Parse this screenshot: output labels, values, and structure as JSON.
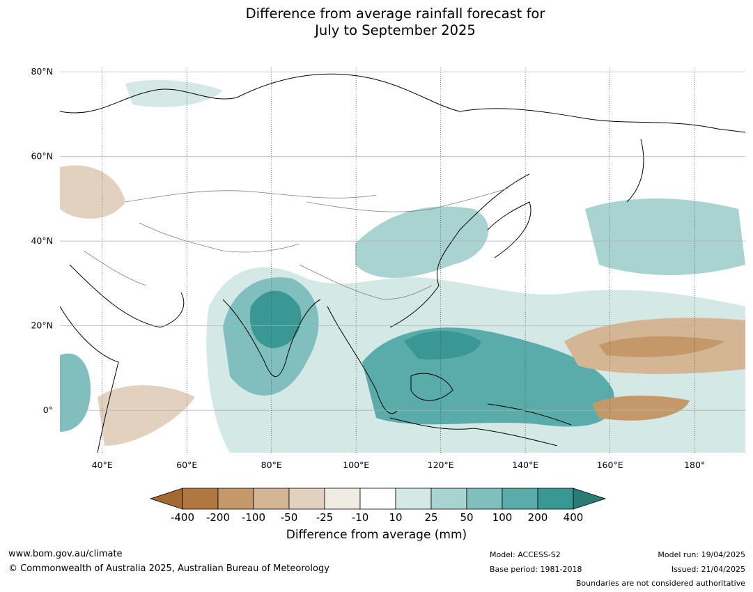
{
  "title_lines": [
    "Difference from average rainfall forecast for",
    "July to September 2025"
  ],
  "map": {
    "lat_labels": [
      "80°N",
      "60°N",
      "40°N",
      "20°N",
      "0°"
    ],
    "lon_labels": [
      "40°E",
      "60°E",
      "80°E",
      "100°E",
      "120°E",
      "140°E",
      "160°E",
      "180°"
    ],
    "lat_range": [
      -10,
      81
    ],
    "lon_range": [
      30,
      192
    ]
  },
  "colorbar": {
    "label": "Difference from average (mm)",
    "ticks": [
      "-400",
      "-200",
      "-100",
      "-50",
      "-25",
      "-10",
      "10",
      "25",
      "50",
      "100",
      "200",
      "400"
    ],
    "colors": [
      "#a06a32",
      "#b07840",
      "#c49868",
      "#d4b594",
      "#e3d1bf",
      "#f0ebe3",
      "#ffffff",
      "#d4e8e6",
      "#a9d3d1",
      "#80bfbd",
      "#5aacaa",
      "#3a9894",
      "#2a7a76"
    ]
  },
  "footer": {
    "website": "www.bom.gov.au/climate",
    "copyright": "© Commonwealth of Australia 2025, Australian Bureau of Meteorology",
    "model": "Model: ACCESS-S2",
    "base_period": "Base period: 1981-2018",
    "model_run": "Model run: 19/04/2025",
    "issued": "Issued: 21/04/2025",
    "disclaimer": "Boundaries are not considered authoritative"
  }
}
